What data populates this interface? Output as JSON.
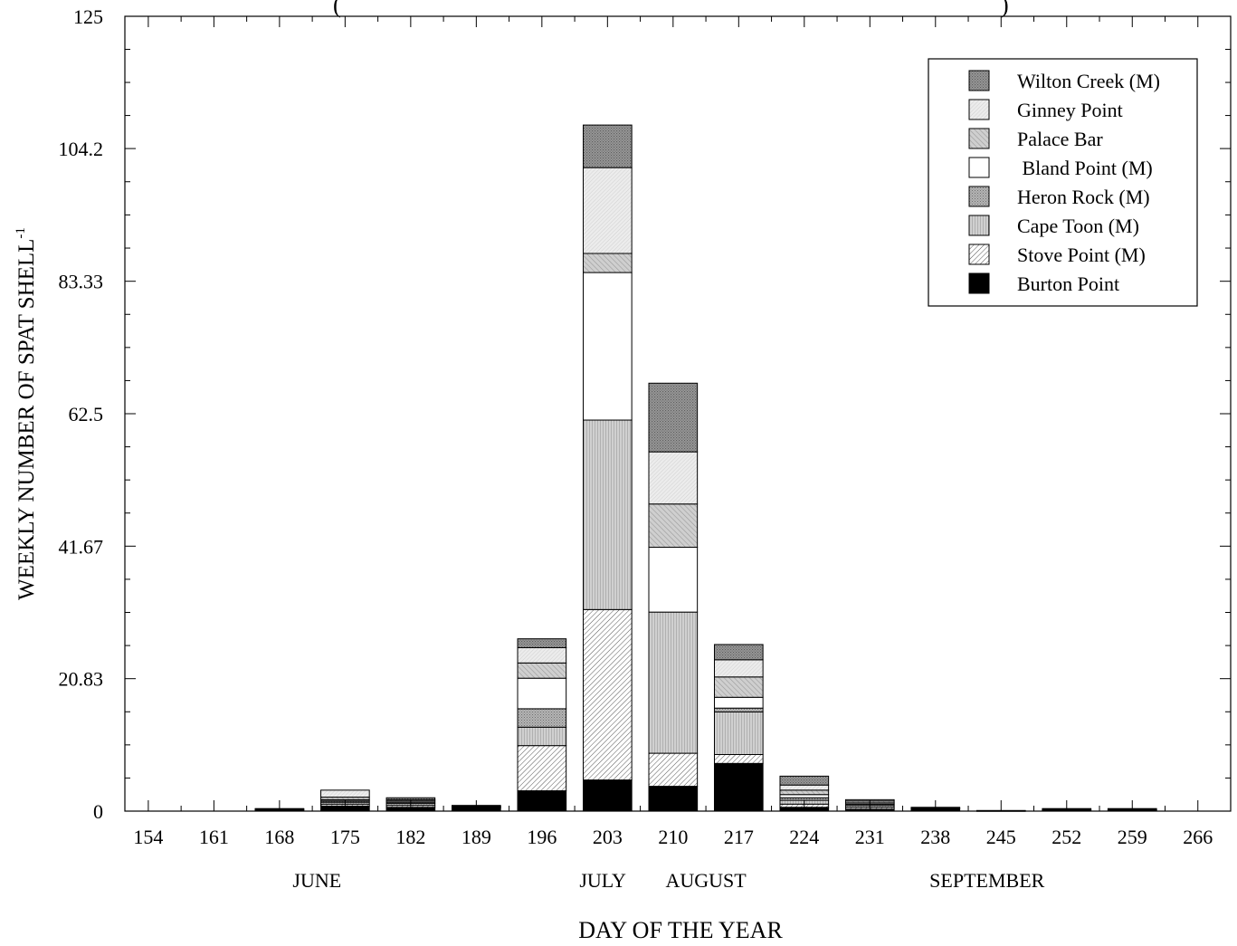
{
  "chart_data": {
    "type": "bar",
    "stacked": true,
    "title_fragment": "(",
    "title_fragment_end": ")",
    "xlabel": "DAY OF THE YEAR",
    "ylabel": "WEEKLY NUMBER OF SPAT SHELL",
    "ylabel_sup": "-1",
    "ylim": [
      0,
      125
    ],
    "y_ticks": [
      "0",
      "20.83",
      "41.67",
      "62.5",
      "83.33",
      "104.2",
      "125"
    ],
    "y_tick_values": [
      0,
      20.83,
      41.67,
      62.5,
      83.33,
      104.2,
      125
    ],
    "categories": [
      "154",
      "161",
      "168",
      "175",
      "182",
      "189",
      "196",
      "203",
      "210",
      "217",
      "224",
      "231",
      "238",
      "245",
      "252",
      "259",
      "266"
    ],
    "months": [
      {
        "label": "JUNE",
        "at": 172
      },
      {
        "label": "JULY",
        "at": 202.5
      },
      {
        "label": "AUGUST",
        "at": 213.5
      },
      {
        "label": "SEPTEMBER",
        "at": 243.5
      }
    ],
    "legend_position": "top-right",
    "series": [
      {
        "name": "Burton Point",
        "fill": "solid-black",
        "values": [
          0,
          0,
          0.1,
          0.8,
          0.6,
          0.5,
          3.2,
          4.9,
          3.9,
          7.5,
          0.6,
          0.3,
          0.4,
          0.05,
          0.1,
          0.1,
          0
        ]
      },
      {
        "name": "Stove Point (M)",
        "fill": "diag-fine",
        "values": [
          0,
          0,
          0.1,
          0.3,
          0.3,
          0.1,
          7.1,
          26.8,
          5.2,
          1.4,
          0.5,
          0.3,
          0.1,
          0.05,
          0.1,
          0.1,
          0
        ]
      },
      {
        "name": "Cape Toon (M)",
        "fill": "vert-dense",
        "values": [
          0,
          0,
          0.1,
          0.3,
          0.3,
          0.1,
          2.9,
          29.8,
          22.2,
          6.7,
          0.6,
          0.3,
          0.1,
          0,
          0.1,
          0.1,
          0
        ]
      },
      {
        "name": "Heron Rock (M)",
        "fill": "cross-dense",
        "values": [
          0,
          0,
          0.05,
          0.2,
          0.2,
          0.1,
          2.9,
          0,
          0,
          0.6,
          0.4,
          0.2,
          0,
          0,
          0,
          0,
          0
        ]
      },
      {
        "name": "Bland Point (M)",
        "fill": "white",
        "values": [
          0,
          0,
          0,
          0.2,
          0.2,
          0,
          4.8,
          23.2,
          10.2,
          1.7,
          0.5,
          0.2,
          0,
          0,
          0,
          0,
          0
        ]
      },
      {
        "name": "Palace Bar",
        "fill": "diag-medium",
        "values": [
          0,
          0,
          0.05,
          0.4,
          0.2,
          0.1,
          2.4,
          3.0,
          6.8,
          3.2,
          0.7,
          0.3,
          0,
          0,
          0.1,
          0.1,
          0
        ]
      },
      {
        "name": "Ginney Point",
        "fill": "light-texture",
        "values": [
          0,
          0,
          0,
          1.1,
          0,
          0,
          2.4,
          13.5,
          8.2,
          2.7,
          0.8,
          0.2,
          0,
          0,
          0,
          0,
          0
        ]
      },
      {
        "name": "Wilton Creek (M)",
        "fill": "dark-texture",
        "values": [
          0,
          0,
          0,
          0,
          0.3,
          0,
          1.4,
          6.7,
          10.8,
          2.4,
          1.4,
          0,
          0,
          0,
          0,
          0,
          0
        ]
      }
    ],
    "legend_order": [
      "Wilton Creek (M)",
      "Ginney Point",
      "Palace Bar",
      " Bland Point (M)",
      "Heron Rock (M)",
      "Cape Toon (M)",
      "Stove Point (M)",
      "Burton Point"
    ],
    "grid": false
  }
}
